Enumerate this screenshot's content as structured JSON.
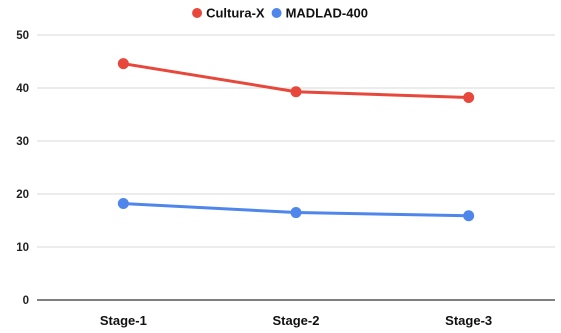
{
  "chart_data": {
    "type": "line",
    "title": "",
    "xlabel": "",
    "ylabel": "",
    "categories": [
      "Stage-1",
      "Stage-2",
      "Stage-3"
    ],
    "ylim": [
      0,
      50
    ],
    "yticks": [
      0,
      10,
      20,
      30,
      40,
      50
    ],
    "grid": true,
    "legend_position": "top-center",
    "series": [
      {
        "name": "Cultura-X",
        "color": "#e8473b",
        "values": [
          44.6,
          39.3,
          38.2
        ]
      },
      {
        "name": "MADLAD-400",
        "color": "#4f86ec",
        "values": [
          18.2,
          16.5,
          15.9
        ]
      }
    ]
  }
}
